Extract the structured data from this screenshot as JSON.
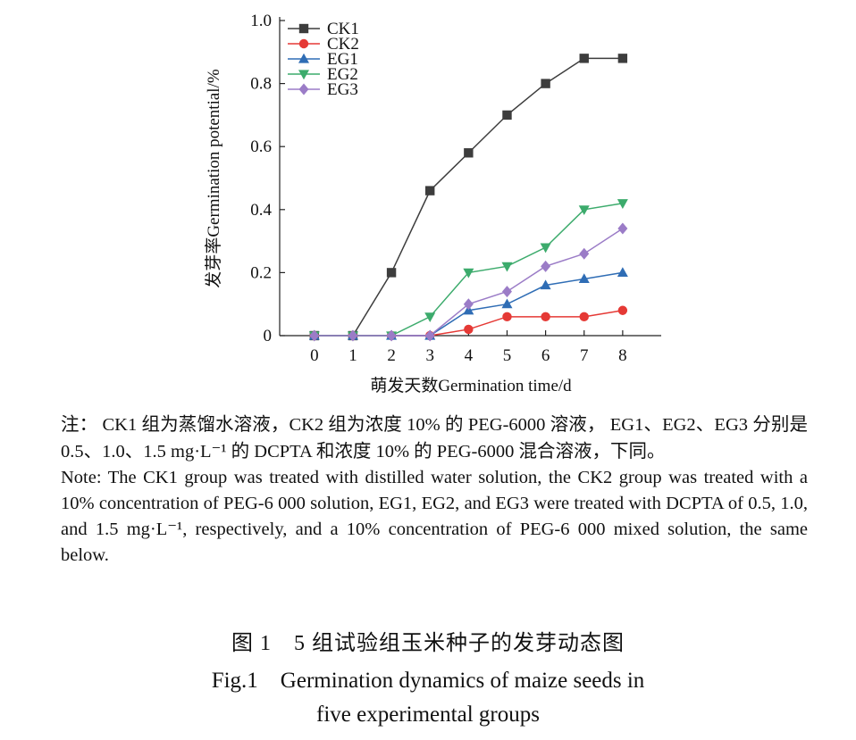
{
  "chart_data": {
    "type": "line",
    "xlabel": "萌发天数Germination time/d",
    "ylabel": "发芽率Germination potential/%",
    "x": [
      0,
      1,
      2,
      3,
      4,
      5,
      6,
      7,
      8
    ],
    "xticks": [
      "0",
      "1",
      "2",
      "3",
      "4",
      "5",
      "6",
      "7",
      "8"
    ],
    "yticks": [
      "0",
      "0.2",
      "0.4",
      "0.6",
      "0.8",
      "1.0"
    ],
    "ylim": [
      0,
      1.0
    ],
    "xlim": [
      -0.9,
      9.0
    ],
    "grid": false,
    "legend_position": "top-left",
    "series": [
      {
        "name": "CK1",
        "color": "#3d3d3d",
        "marker": "square",
        "values": [
          0,
          0,
          0.2,
          0.46,
          0.58,
          0.7,
          0.8,
          0.88,
          0.88
        ]
      },
      {
        "name": "CK2",
        "color": "#e53935",
        "marker": "circle",
        "values": [
          0,
          0,
          0,
          0,
          0.02,
          0.06,
          0.06,
          0.06,
          0.08
        ]
      },
      {
        "name": "EG1",
        "color": "#2f6db5",
        "marker": "triangle-up",
        "values": [
          0,
          0,
          0,
          0,
          0.08,
          0.1,
          0.16,
          0.18,
          0.2
        ]
      },
      {
        "name": "EG2",
        "color": "#3cab6c",
        "marker": "triangle-down",
        "values": [
          0,
          0,
          0,
          0.06,
          0.2,
          0.22,
          0.28,
          0.4,
          0.42
        ]
      },
      {
        "name": "EG3",
        "color": "#9b7cc7",
        "marker": "diamond",
        "values": [
          0,
          0,
          0,
          0,
          0.1,
          0.14,
          0.22,
          0.26,
          0.34
        ]
      }
    ]
  },
  "notes": {
    "zh": "注： CK1 组为蒸馏水溶液，CK2 组为浓度 10% 的 PEG-6000 溶液， EG1、EG2、EG3 分别是 0.5、1.0、1.5 mg·L⁻¹ 的 DCPTA 和浓度 10% 的 PEG-6000 混合溶液，下同。",
    "en": "Note: The CK1 group was treated with distilled water solution, the CK2 group was treated with a 10% concentration of PEG-6 000 solution, EG1, EG2, and EG3 were treated with DCPTA of 0.5, 1.0, and 1.5 mg·L⁻¹, respectively, and a 10% concentration of PEG-6 000 mixed solution, the same below."
  },
  "caption": {
    "zh": "图 1　5 组试验组玉米种子的发芽动态图",
    "en_line1": "Fig.1　Germination dynamics of maize seeds in",
    "en_line2": "five experimental groups"
  }
}
